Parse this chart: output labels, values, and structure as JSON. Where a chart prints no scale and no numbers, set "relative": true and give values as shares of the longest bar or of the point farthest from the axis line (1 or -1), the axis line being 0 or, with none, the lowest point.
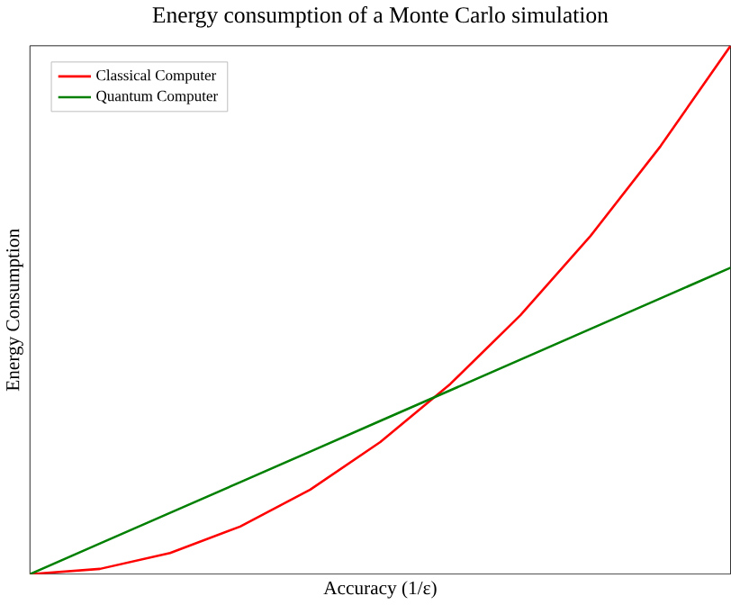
{
  "chart_data": {
    "type": "line",
    "title": "Energy consumption of a Monte Carlo simulation",
    "xlabel": "Accuracy (1/ε)",
    "ylabel": "Energy Consumption",
    "relative": true,
    "legend": "top left",
    "categories": [
      null,
      null,
      null,
      null,
      null,
      null,
      null,
      null,
      null,
      null,
      null
    ],
    "series": [
      {
        "name": "Classical Computer",
        "color": "#ff0000",
        "values": [
          0,
          0.01,
          0.04,
          0.09,
          0.16,
          0.25,
          0.36,
          0.49,
          0.64,
          0.81,
          1
        ]
      },
      {
        "name": "Quantum Computer",
        "color": "#008000",
        "values": [
          0,
          0.058,
          0.116,
          0.174,
          0.232,
          0.29,
          0.348,
          0.406,
          0.464,
          0.522,
          0.58
        ]
      }
    ]
  }
}
